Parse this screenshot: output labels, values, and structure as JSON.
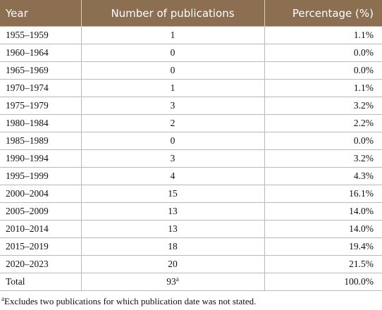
{
  "table": {
    "header": [
      "Year",
      "Number of publications",
      "Percentage (%)"
    ],
    "rows": [
      [
        "1955–1959",
        "1",
        "1.1%"
      ],
      [
        "1960–1964",
        "0",
        "0.0%"
      ],
      [
        "1965–1969",
        "0",
        "0.0%"
      ],
      [
        "1970–1974",
        "1",
        "1.1%"
      ],
      [
        "1975–1979",
        "3",
        "3.2%"
      ],
      [
        "1980–1984",
        "2",
        "2.2%"
      ],
      [
        "1985–1989",
        "0",
        "0.0%"
      ],
      [
        "1990–1994",
        "3",
        "3.2%"
      ],
      [
        "1995–1999",
        "4",
        "4.3%"
      ],
      [
        "2000–2004",
        "15",
        "16.1%"
      ],
      [
        "2005–2009",
        "13",
        "14.0%"
      ],
      [
        "2010–2014",
        "13",
        "14.0%"
      ],
      [
        "2015–2019",
        "18",
        "19.4%"
      ],
      [
        "2020–2023",
        "20",
        "21.5%"
      ],
      [
        "Total",
        "93",
        "100.0%"
      ]
    ],
    "total_note_mark": "a"
  },
  "footnote": {
    "mark": "a",
    "text": "Excludes two publications for which publication date was not stated."
  }
}
